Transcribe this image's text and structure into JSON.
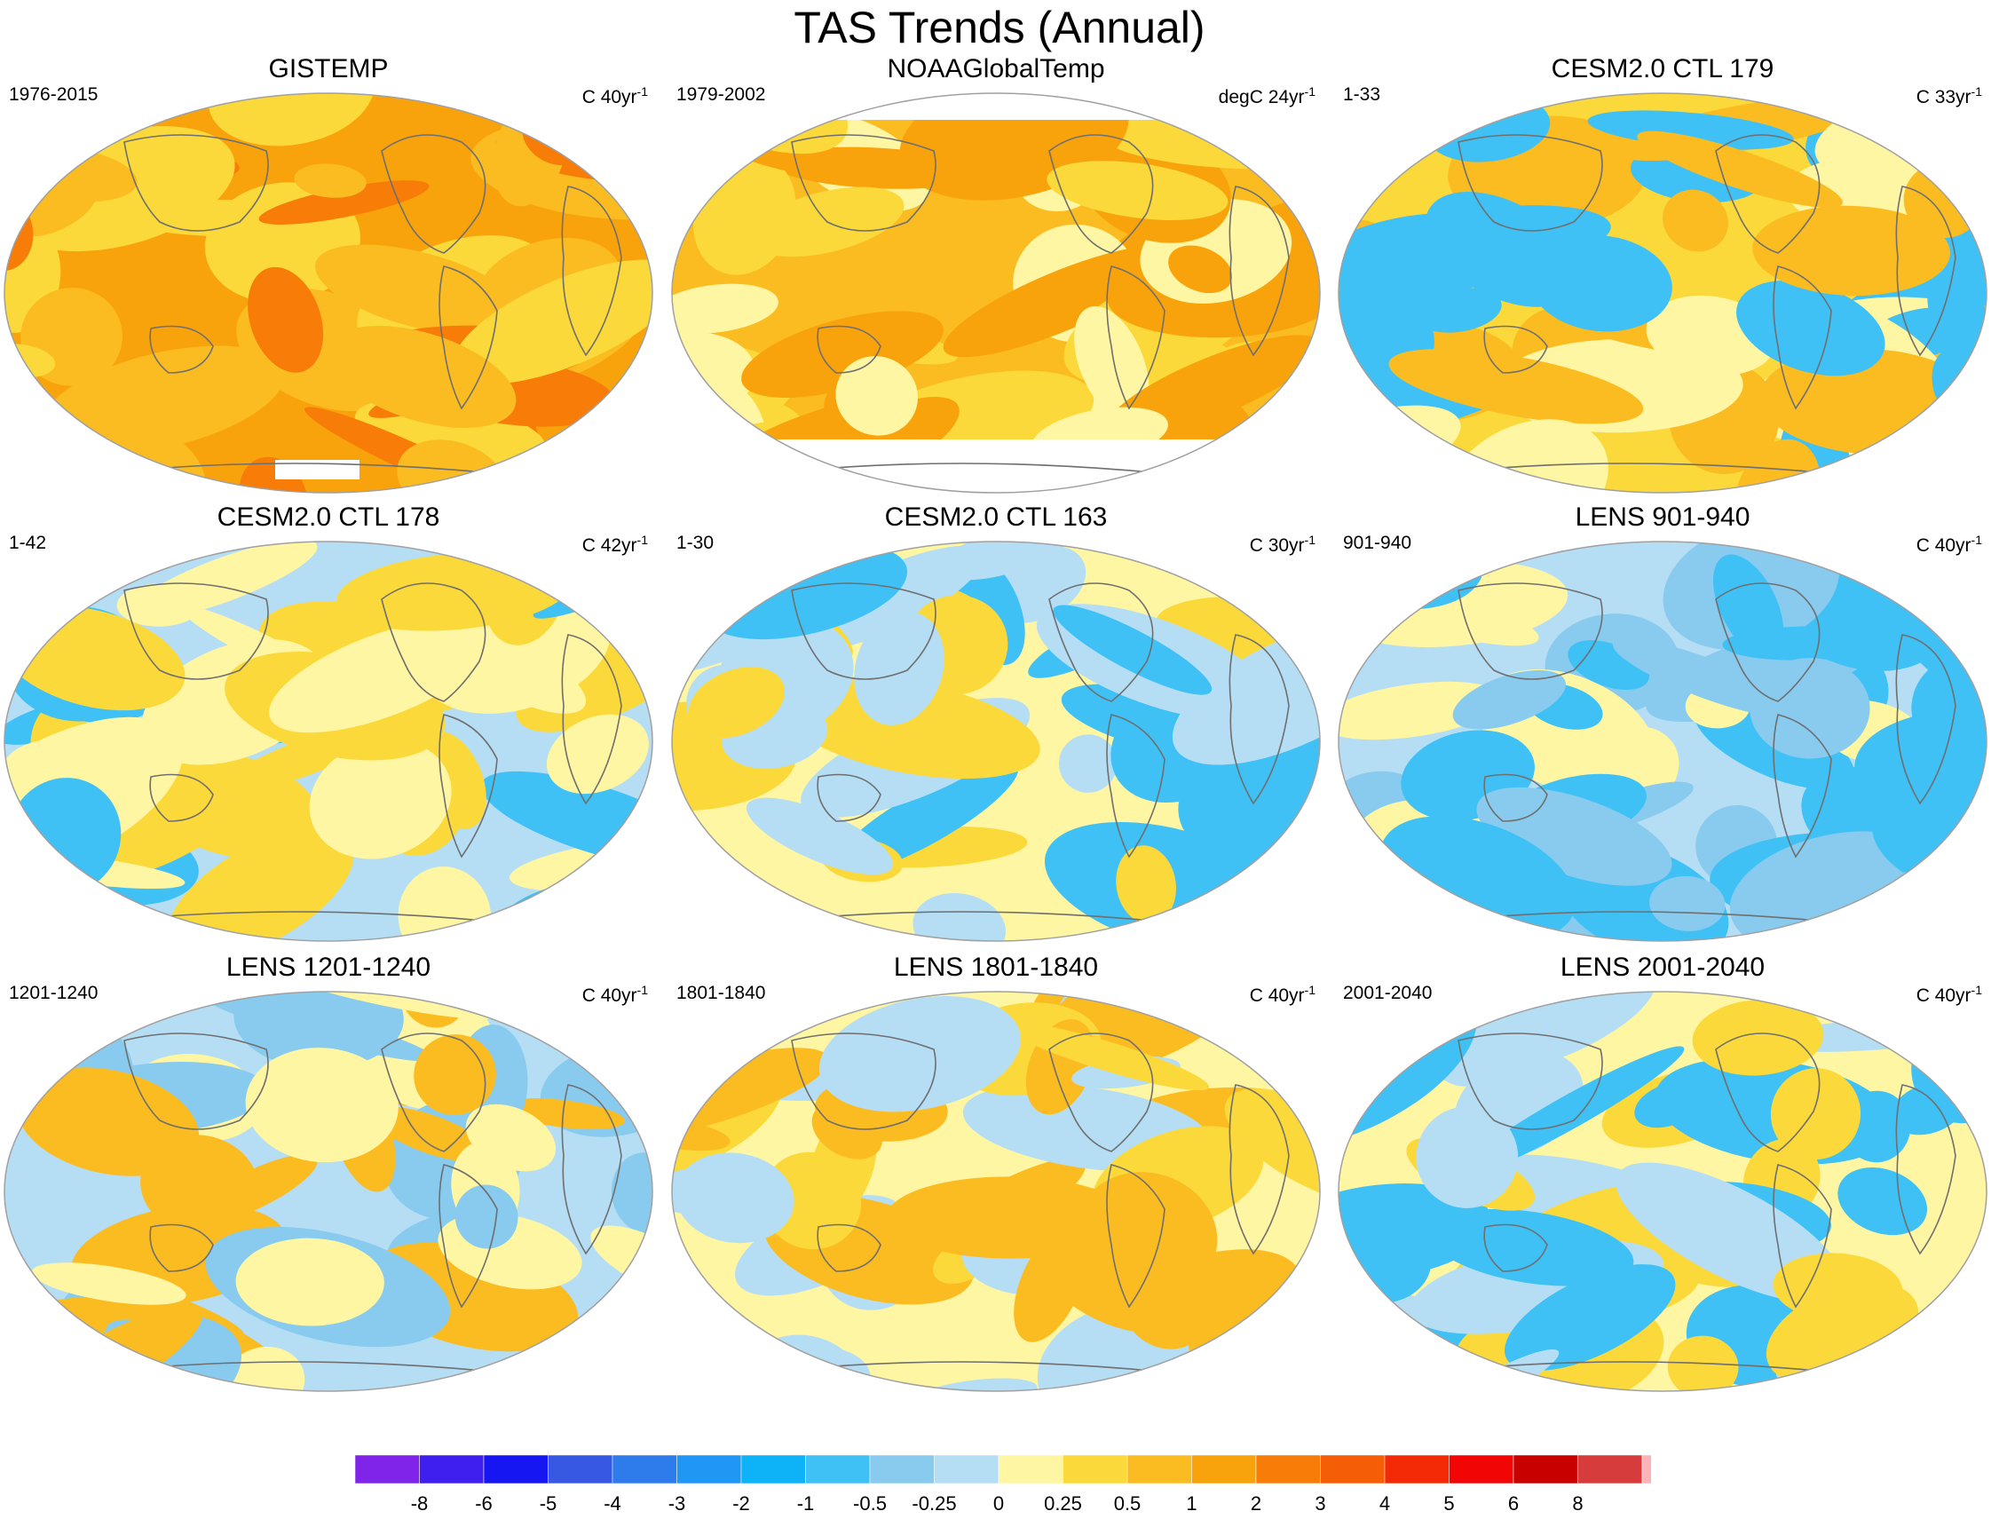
{
  "title": "TAS Trends (Annual)",
  "colors": {
    "levels": [
      "#7f24e8",
      "#3f1ef0",
      "#1616f2",
      "#3758e2",
      "#2e7bec",
      "#1f97f5",
      "#0db2f7",
      "#3fc1f5",
      "#88cbee",
      "#b5def5",
      "#fff6a3",
      "#fbd93a",
      "#fbbc22",
      "#f9a30c",
      "#f77c08",
      "#f65d07",
      "#f42a07",
      "#f20505",
      "#c90000",
      "#d63c3c",
      "#fbb3b8"
    ],
    "map_outline": "#a0a0a0",
    "coastline": "#6f6f6f"
  },
  "panels": [
    {
      "title": "GISTEMP",
      "period": "1976-2015",
      "units": "C 40yr",
      "units_exp": "-1",
      "dominant": [
        13,
        12,
        14,
        11
      ],
      "missing": "antarctic_patch"
    },
    {
      "title": "NOAAGlobalTemp",
      "period": "1979-2002",
      "units": "degC 24yr",
      "units_exp": "-1",
      "dominant": [
        12,
        11,
        13,
        10
      ],
      "missing": "polar"
    },
    {
      "title": "CESM2.0 CTL 179",
      "period": "1-33",
      "units": "C 33yr",
      "units_exp": "-1",
      "dominant": [
        11,
        10,
        7,
        12
      ],
      "missing": "none"
    },
    {
      "title": "CESM2.0 CTL 178",
      "period": "1-42",
      "units": "C 42yr",
      "units_exp": "-1",
      "dominant": [
        9,
        10,
        7,
        11
      ],
      "missing": "none"
    },
    {
      "title": "CESM2.0 CTL 163",
      "period": "1-30",
      "units": "C 30yr",
      "units_exp": "-1",
      "dominant": [
        10,
        11,
        9,
        7
      ],
      "missing": "none"
    },
    {
      "title": "LENS 901-940",
      "period": "901-940",
      "units": "C 40yr",
      "units_exp": "-1",
      "dominant": [
        9,
        10,
        8,
        7
      ],
      "missing": "none"
    },
    {
      "title": "LENS 1201-1240",
      "period": "1201-1240",
      "units": "C 40yr",
      "units_exp": "-1",
      "dominant": [
        9,
        10,
        8,
        12
      ],
      "missing": "none"
    },
    {
      "title": "LENS 1801-1840",
      "period": "1801-1840",
      "units": "C 40yr",
      "units_exp": "-1",
      "dominant": [
        10,
        11,
        12,
        9
      ],
      "missing": "none"
    },
    {
      "title": "LENS 2001-2040",
      "period": "2001-2040",
      "units": "C 40yr",
      "units_exp": "-1",
      "dominant": [
        10,
        9,
        11,
        7
      ],
      "missing": "none"
    }
  ],
  "colorbar": {
    "labels": [
      "-8",
      "-6",
      "-5",
      "-4",
      "-3",
      "-2",
      "-1",
      "-0.5",
      "-0.25",
      "0",
      "0.25",
      "0.5",
      "1",
      "2",
      "3",
      "4",
      "5",
      "6",
      "8"
    ]
  },
  "chart_data": {
    "type": "heatmap",
    "title": "TAS Trends (Annual)",
    "projection": "global map (elliptical)",
    "panels": [
      "GISTEMP",
      "NOAAGlobalTemp",
      "CESM2.0 CTL 179",
      "CESM2.0 CTL 178",
      "CESM2.0 CTL 163",
      "LENS 901-940",
      "LENS 1201-1240",
      "LENS 1801-1840",
      "LENS 2001-2040"
    ],
    "contour_levels": [
      -8,
      -6,
      -5,
      -4,
      -3,
      -2,
      -1,
      -0.5,
      -0.25,
      0,
      0.25,
      0.5,
      1,
      2,
      3,
      4,
      5,
      6,
      8
    ],
    "legend": "bottom"
  }
}
